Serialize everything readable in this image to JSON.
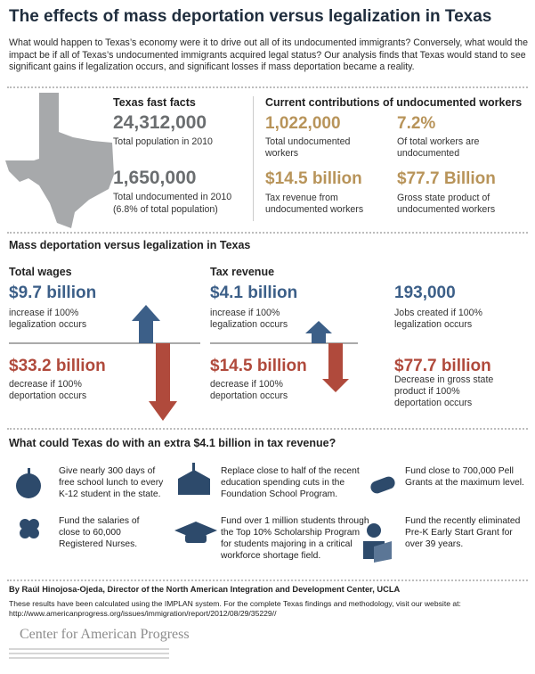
{
  "title": "The effects of mass deportation versus legalization in Texas",
  "intro": "What would happen to Texas’s economy were it to drive out all of its undocumented immigrants? Conversely, what would the impact be if all of Texas’s undocumented immigrants acquired legal status? Our analysis finds that Texas would stand to see significant gains if legalization occurs, and significant losses if mass deportation became a reality.",
  "fast_facts": {
    "heading": "Texas fast facts",
    "items": [
      {
        "value": "24,312,000",
        "label": "Total population in 2010"
      },
      {
        "value": "1,650,000",
        "label": "Total undocumented  in 2010",
        "note": "(6.8% of total population)"
      }
    ]
  },
  "contributions": {
    "heading": "Current contributions of undocumented workers",
    "items": [
      {
        "value": "1,022,000",
        "label": "Total undocumented workers"
      },
      {
        "value": "7.2%",
        "label": "Of total workers are undocumented"
      },
      {
        "value": "$14.5 billion",
        "label": "Tax revenue from undocumented workers"
      },
      {
        "value": "$77.7 Billion",
        "label": "Gross state product of undocumented workers"
      }
    ]
  },
  "comparison": {
    "heading": "Mass deportation versus legalization in Texas",
    "wages": {
      "heading": "Total wages",
      "increase": {
        "value": "$9.7 billion",
        "label": "increase if 100% legalization occurs"
      },
      "decrease": {
        "value": "$33.2 billion",
        "label": "decrease if 100% deportation occurs"
      }
    },
    "tax": {
      "heading": "Tax revenue",
      "increase": {
        "value": "$4.1 billion",
        "label": "increase if 100% legalization occurs"
      },
      "decrease": {
        "value": "$14.5 billion",
        "label": "decrease if 100% deportation occurs"
      }
    },
    "jobs": {
      "value": "193,000",
      "label": "Jobs created if 100% legalization occurs"
    },
    "gsp": {
      "value": "$77.7 billion",
      "label": "Decrease in gross state product if 100% deportation occurs"
    }
  },
  "uses": {
    "heading": "What could Texas do with an extra $4.1 billion in tax revenue?",
    "items": [
      "Give nearly 300 days of free school lunch to every K-12 student in the state.",
      "Replace close to half of the recent education spending cuts in the Foundation School Program.",
      "Fund close to 700,000 Pell Grants at the maximum level.",
      "Fund the salaries of close to 60,000 Registered Nurses.",
      "Fund over 1 million students through the Top 10% Scholarship Program for students majoring in a critical workforce shortage field.",
      "Fund the recently eliminated Pre-K Early Start Grant for over 39 years."
    ]
  },
  "byline": "By Raúl Hinojosa-Ojeda, Director of the North American Integration and Development Center, UCLA",
  "note": "These results have been calculated using the IMPLAN system. For the complete Texas findings and methodology, visit our website at: http://www.americanprogress.org/issues/immigration/report/2012/08/29/35229//",
  "logo": "Center for American Progress"
}
